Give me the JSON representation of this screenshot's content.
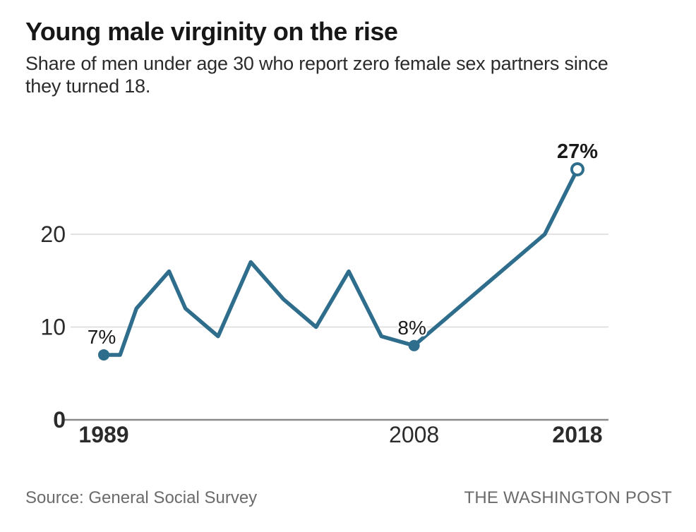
{
  "header": {
    "title": "Young male virginity on the rise",
    "subtitle": "Share of men under age 30 who report zero female sex partners since\nthey turned 18."
  },
  "footer": {
    "source": "Source: General Social Survey",
    "credit": "THE WASHINGTON POST"
  },
  "chart_data": {
    "type": "line",
    "title": "Young male virginity on the rise",
    "subtitle": "Share of men under age 30 who report zero female sex partners since they turned 18.",
    "xlabel": "",
    "ylabel": "",
    "xlim": [
      1989,
      2018
    ],
    "ylim": [
      0,
      29
    ],
    "grid": "horizontal",
    "legend_position": "none",
    "y_ticks": [
      {
        "value": 0,
        "label": "0",
        "bold": true
      },
      {
        "value": 10,
        "label": "10",
        "bold": false
      },
      {
        "value": 20,
        "label": "20",
        "bold": false
      }
    ],
    "x_ticks": [
      {
        "year": 1989,
        "label": "1989",
        "bold": true
      },
      {
        "year": 2008,
        "label": "2008",
        "bold": false
      },
      {
        "year": 2018,
        "label": "2018",
        "bold": true
      }
    ],
    "series": [
      {
        "name": "Share of men under age 30 reporting zero female sex partners since turning 18 (%)",
        "points": [
          {
            "year": 1989,
            "value": 7
          },
          {
            "year": 1990,
            "value": 7
          },
          {
            "year": 1991,
            "value": 12
          },
          {
            "year": 1993,
            "value": 16
          },
          {
            "year": 1994,
            "value": 12
          },
          {
            "year": 1996,
            "value": 9
          },
          {
            "year": 1998,
            "value": 17
          },
          {
            "year": 2000,
            "value": 13
          },
          {
            "year": 2002,
            "value": 10
          },
          {
            "year": 2004,
            "value": 16
          },
          {
            "year": 2006,
            "value": 9
          },
          {
            "year": 2008,
            "value": 8
          },
          {
            "year": 2016,
            "value": 20
          },
          {
            "year": 2018,
            "value": 27
          }
        ]
      }
    ],
    "annotations": [
      {
        "year": 1989,
        "value": 7,
        "label": "7%",
        "marker": "filled-dot",
        "bold": false
      },
      {
        "year": 2008,
        "value": 8,
        "label": "8%",
        "marker": "filled-dot",
        "bold": false
      },
      {
        "year": 2018,
        "value": 27,
        "label": "27%",
        "marker": "open-dot",
        "bold": true
      }
    ],
    "colors": {
      "line": "#2e6d8c",
      "marker_fill": "#2e6d8c",
      "marker_open_fill": "#ffffff",
      "grid": "#d9d9d9",
      "axis": "#8a8a8a",
      "tick_text": "#2b2b2b",
      "annotation_text": "#1a1a1a"
    }
  }
}
